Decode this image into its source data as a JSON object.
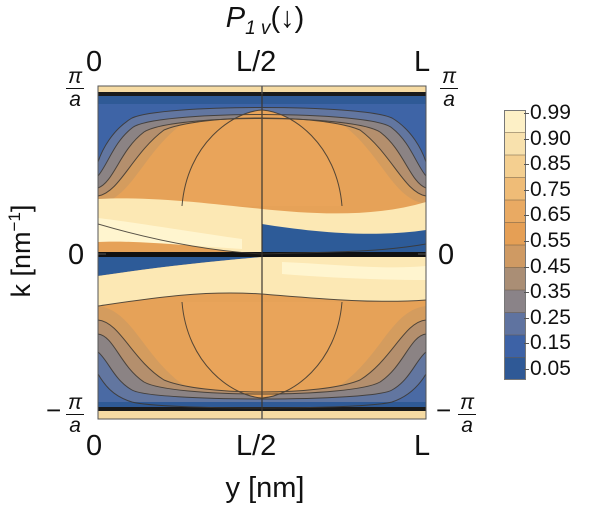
{
  "chart_data": {
    "type": "heatmap",
    "title": "P",
    "title_sub": "1 v",
    "title_arrow": "(↓)",
    "xlabel": "y [nm]",
    "ylabel_main": "k [nm",
    "ylabel_exp": "−1",
    "ylabel_close": "]",
    "x_ticks_bottom": [
      "0",
      "L/2",
      "L"
    ],
    "x_ticks_top": [
      "0",
      "L/2",
      "L"
    ],
    "y_tick_zero": "0",
    "y_tick_top": {
      "sign": "",
      "num": "π",
      "den": "a"
    },
    "y_tick_bottom": {
      "sign": "−",
      "num": "π",
      "den": "a"
    },
    "colorbar": {
      "labels": [
        "0.99",
        "0.90",
        "0.85",
        "0.75",
        "0.65",
        "0.55",
        "0.45",
        "0.35",
        "0.25",
        "0.15",
        "0.05"
      ],
      "colors_top_to_bottom": [
        "#fdf0c6",
        "#f8e1ad",
        "#f4cf90",
        "#efbc77",
        "#e9aa63",
        "#e59f55",
        "#cf9a63",
        "#aa8e75",
        "#8a8388",
        "#5f73a0",
        "#3d62a6",
        "#2f5996"
      ]
    },
    "palette": {
      "low": "#2f5a96",
      "mid": "#7e7b83",
      "high": "#fdf2c8",
      "orange": "#e6a258",
      "contour": "#3b3630"
    }
  }
}
